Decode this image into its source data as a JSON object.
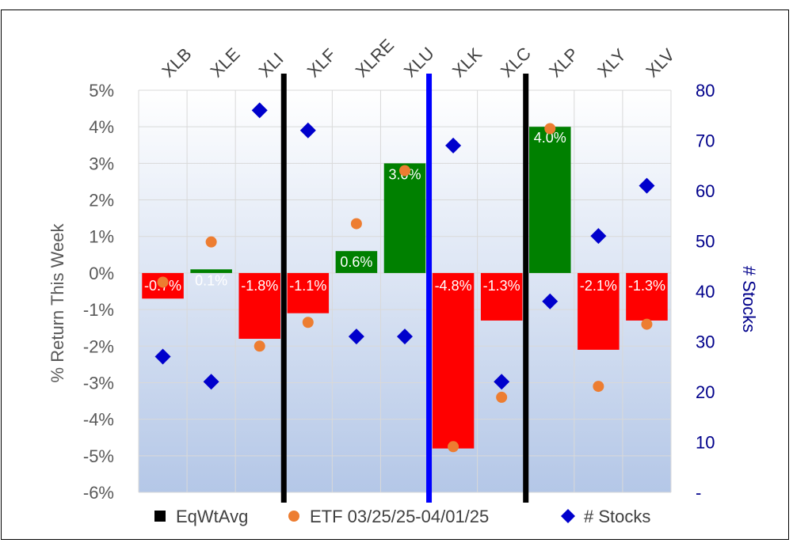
{
  "chart_data": {
    "type": "bar",
    "categories": [
      "XLB",
      "XLE",
      "XLI",
      "XLF",
      "XLRE",
      "XLU",
      "XLK",
      "XLC",
      "XLP",
      "XLY",
      "XLV"
    ],
    "series": [
      {
        "name": "EqWtAvg",
        "kind": "bar",
        "values": [
          -0.7,
          0.1,
          -1.8,
          -1.1,
          0.6,
          3.0,
          -4.8,
          -1.3,
          4.0,
          -2.1,
          -1.3
        ],
        "labels": [
          "-0.7%",
          "0.1%",
          "-1.8%",
          "-1.1%",
          "0.6%",
          "3.0%",
          "-4.8%",
          "-1.3%",
          "4.0%",
          "-2.1%",
          "-1.3%"
        ]
      },
      {
        "name": "ETF 03/25/25-04/01/25",
        "kind": "dot",
        "values": [
          -0.25,
          0.85,
          -2.0,
          -1.35,
          1.35,
          2.8,
          -4.75,
          -3.4,
          3.95,
          -3.1,
          -1.4
        ]
      },
      {
        "name": "# Stocks",
        "kind": "diamond",
        "axis": "right",
        "values": [
          27,
          22,
          76,
          72,
          31,
          31,
          69,
          22,
          38,
          51,
          61
        ]
      }
    ],
    "y_left": {
      "label": "% Return This Week",
      "min": -6,
      "max": 5,
      "ticks": [
        5,
        4,
        3,
        2,
        1,
        0,
        -1,
        -2,
        -3,
        -4,
        -5,
        -6
      ],
      "tick_labels": [
        "5%",
        "4%",
        "3%",
        "2%",
        "1%",
        "0%",
        "-1%",
        "-2%",
        "-3%",
        "-4%",
        "-5%",
        "-6%"
      ]
    },
    "y_right": {
      "label": "# Stocks",
      "min": 0,
      "max": 80,
      "ticks": [
        80,
        70,
        60,
        50,
        40,
        30,
        20,
        10,
        0
      ],
      "tick_labels": [
        "80",
        "70",
        "60",
        "50",
        "40",
        "30",
        "20",
        "10",
        "-"
      ]
    },
    "separators_after": [
      {
        "after_index": 2,
        "color": "#000000"
      },
      {
        "after_index": 5,
        "color": "#0000ff"
      },
      {
        "after_index": 7,
        "color": "#000000"
      }
    ],
    "legend": {
      "position": "bottom",
      "items": [
        {
          "label": "EqWtAvg",
          "marker": "square",
          "color": "#000000"
        },
        {
          "label": "ETF 03/25/25-04/01/25",
          "marker": "circle",
          "color": "#ed7d31"
        },
        {
          "label": "# Stocks",
          "marker": "diamond",
          "color": "#0000cc"
        }
      ]
    },
    "colors": {
      "positive": "#008000",
      "negative": "#ff0000",
      "dot": "#ed7d31",
      "diamond": "#0000cc",
      "right_axis_text": "#00008b",
      "left_axis_text": "#595959"
    },
    "grid": true
  }
}
